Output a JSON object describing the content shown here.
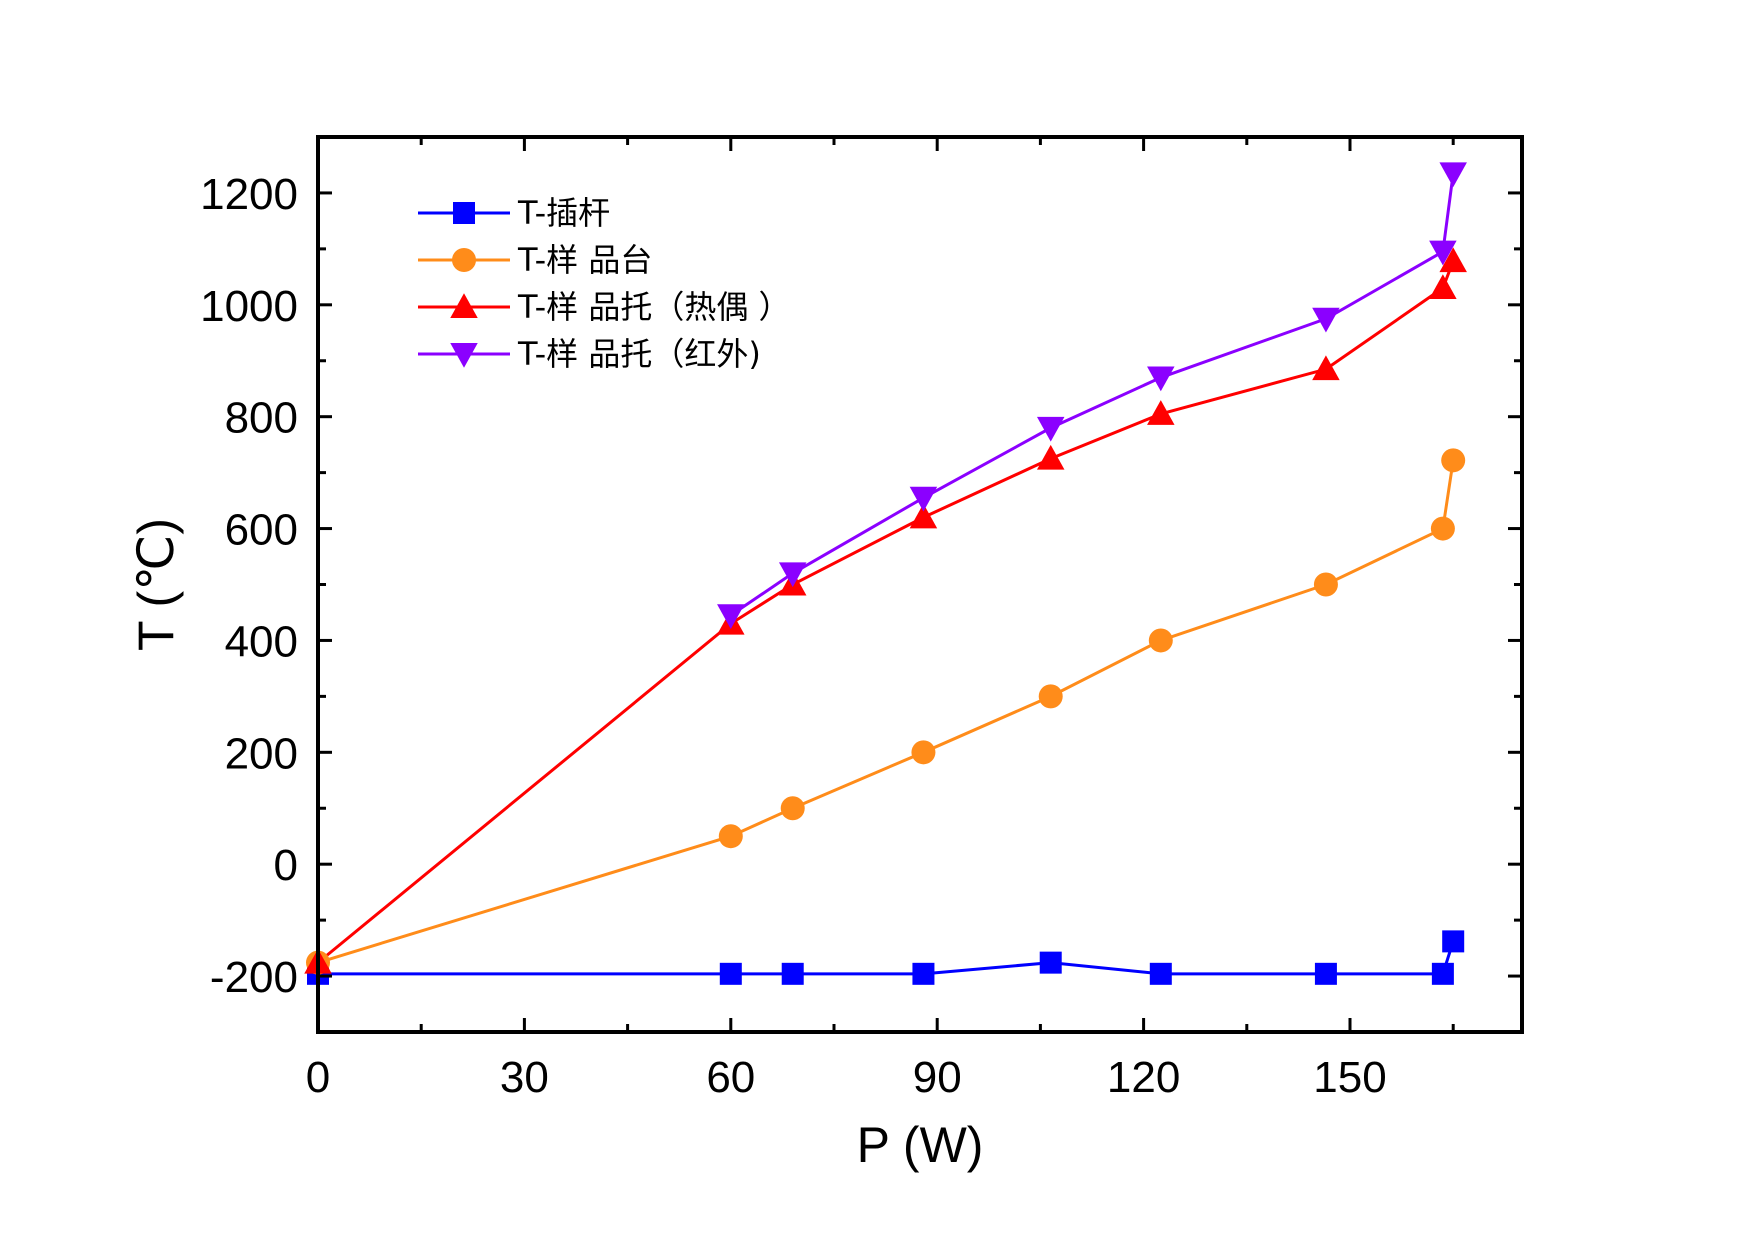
{
  "chart_data": {
    "type": "line",
    "xlabel": "P (W)",
    "ylabel": "T (℃)",
    "xlim": [
      0,
      175
    ],
    "ylim": [
      -300,
      1300
    ],
    "x_ticks": [
      0,
      30,
      60,
      90,
      120,
      150
    ],
    "y_ticks": [
      -200,
      0,
      200,
      400,
      600,
      800,
      1000,
      1200
    ],
    "grid": false,
    "legend_position": "top-left",
    "series": [
      {
        "name": "T-插杆",
        "color": "#0000ff",
        "marker": "square",
        "x": [
          0,
          60,
          69,
          88,
          106.5,
          122.5,
          146.5,
          163.5,
          165
        ],
        "y": [
          -196,
          -196,
          -196,
          -196,
          -176,
          -196,
          -196,
          -196,
          -138
        ]
      },
      {
        "name": "T-样 品台",
        "color": "#ff8c1a",
        "marker": "circle",
        "x": [
          0,
          60,
          69,
          88,
          106.5,
          122.5,
          146.5,
          163.5,
          165
        ],
        "y": [
          -176,
          50,
          100,
          200,
          300,
          400,
          500,
          600,
          722
        ]
      },
      {
        "name": "T-样 品托（热偶 ）",
        "color": "#ff0000",
        "marker": "triangle-up",
        "x": [
          0,
          60,
          69,
          88,
          106.5,
          122.5,
          146.5,
          163.5,
          165
        ],
        "y": [
          -176,
          430,
          500,
          620,
          725,
          805,
          885,
          1030,
          1078
        ]
      },
      {
        "name": "T-样 品托（红外)",
        "color": "#8b00ff",
        "marker": "triangle-down",
        "x": [
          60,
          69,
          88,
          106.5,
          122.5,
          146.5,
          163.5,
          165
        ],
        "y": [
          445,
          520,
          655,
          780,
          870,
          975,
          1095,
          1235
        ]
      }
    ]
  }
}
